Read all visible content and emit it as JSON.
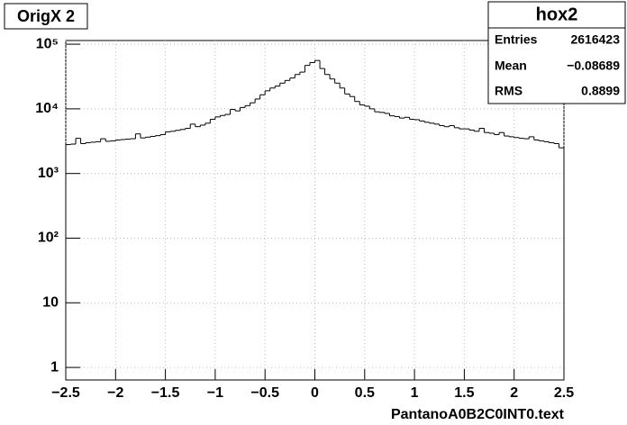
{
  "chart_data": {
    "type": "histogram",
    "title": "OrigX 2",
    "x_label": "PantanoA0B2C0INT0.text",
    "log_y": true,
    "grid": true,
    "color": "#000000",
    "bins": [
      -2.5,
      -2.45,
      -2.4,
      -2.35,
      -2.3,
      -2.25,
      -2.2,
      -2.15,
      -2.1,
      -2.05,
      -2.0,
      -1.95,
      -1.9,
      -1.85,
      -1.8,
      -1.75,
      -1.7,
      -1.65,
      -1.6,
      -1.55,
      -1.5,
      -1.45,
      -1.4,
      -1.35,
      -1.3,
      -1.25,
      -1.2,
      -1.15,
      -1.1,
      -1.05,
      -1.0,
      -0.95,
      -0.9,
      -0.85,
      -0.8,
      -0.75,
      -0.7,
      -0.65,
      -0.6,
      -0.55,
      -0.5,
      -0.45,
      -0.4,
      -0.35,
      -0.3,
      -0.25,
      -0.2,
      -0.15,
      -0.1,
      -0.05,
      0,
      0.05,
      0.1,
      0.15,
      0.2,
      0.25,
      0.3,
      0.35,
      0.4,
      0.45,
      0.5,
      0.55,
      0.6,
      0.65,
      0.7,
      0.75,
      0.8,
      0.85,
      0.9,
      0.95,
      1.0,
      1.05,
      1.1,
      1.15,
      1.2,
      1.25,
      1.3,
      1.35,
      1.4,
      1.45,
      1.5,
      1.55,
      1.6,
      1.65,
      1.7,
      1.75,
      1.8,
      1.85,
      1.9,
      1.95,
      2.0,
      2.05,
      2.1,
      2.15,
      2.2,
      2.25,
      2.3,
      2.35,
      2.4,
      2.45,
      2.5
    ],
    "values": [
      2800,
      2850,
      3500,
      2900,
      3000,
      3050,
      3100,
      3450,
      3150,
      3200,
      3300,
      3350,
      3400,
      3450,
      4100,
      3550,
      3650,
      3750,
      3850,
      4000,
      4400,
      4500,
      4650,
      4800,
      5000,
      5800,
      5300,
      5600,
      6000,
      6900,
      7500,
      7900,
      8200,
      9800,
      9300,
      10500,
      11200,
      12400,
      14200,
      16500,
      19000,
      21000,
      22500,
      25000,
      27500,
      30000,
      34000,
      37000,
      47000,
      52000,
      56000,
      42000,
      34000,
      29000,
      25000,
      21000,
      17000,
      15500,
      13000,
      11500,
      11000,
      10000,
      9000,
      8800,
      8500,
      7800,
      7600,
      7200,
      7400,
      6900,
      6800,
      6500,
      6200,
      6000,
      5800,
      5500,
      5300,
      5500,
      5100,
      4900,
      4900,
      4700,
      4500,
      5000,
      4300,
      4200,
      4000,
      4300,
      3800,
      3700,
      3600,
      3500,
      3450,
      3700,
      3300,
      3200,
      3100,
      3000,
      2900,
      2500
    ],
    "xlim": [
      -2.5,
      2.5
    ],
    "xticks": [
      {
        "value": -2.5,
        "label": "−2.5"
      },
      {
        "value": -2,
        "label": "−2"
      },
      {
        "value": -1.5,
        "label": "−1.5"
      },
      {
        "value": -1,
        "label": "−1"
      },
      {
        "value": -0.5,
        "label": "−0.5"
      },
      0,
      0.5,
      1,
      1.5,
      2,
      2.5
    ],
    "ylim": [
      0.64,
      114000
    ],
    "yticks": [
      1,
      10,
      {
        "value": 100,
        "label": "10²"
      },
      {
        "value": 1000,
        "label": "10³"
      },
      {
        "value": 10000,
        "label": "10⁴"
      },
      {
        "value": 100000,
        "label": "10⁵"
      }
    ],
    "stats": {
      "title": "hox2",
      "rows": [
        [
          "Entries",
          "2616423"
        ],
        [
          "Mean",
          "−0.08689"
        ],
        [
          "RMS",
          "0.8899"
        ]
      ]
    }
  }
}
